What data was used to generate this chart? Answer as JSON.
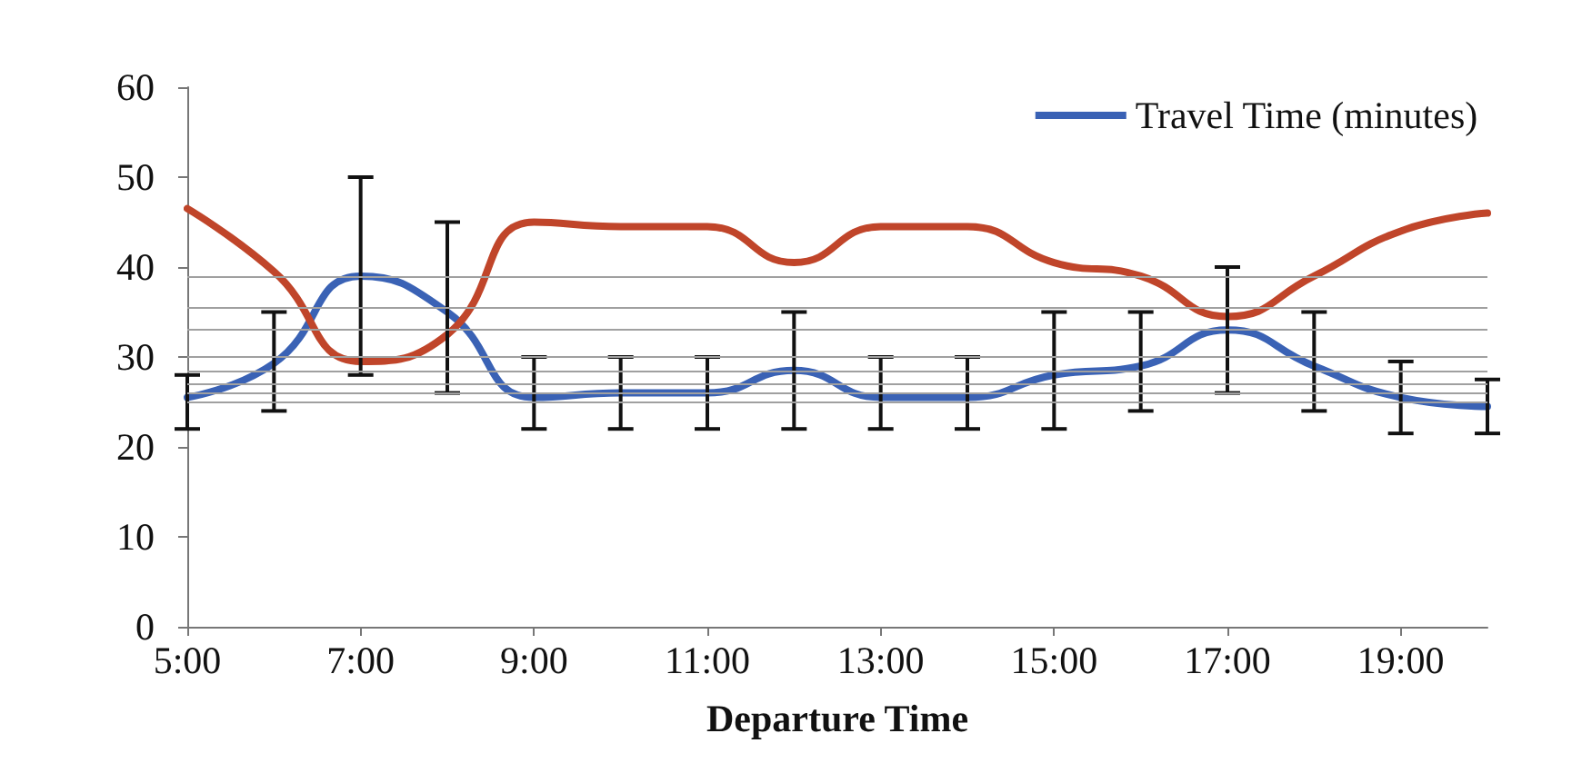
{
  "chart_data": {
    "type": "line",
    "xlabel": "Departure Time",
    "x": [
      5,
      6,
      7,
      8,
      9,
      10,
      11,
      12,
      13,
      14,
      15,
      16,
      17,
      18,
      19,
      20
    ],
    "series": [
      {
        "name": "Travel Time (minutes)",
        "color": "#3a62b5",
        "values": [
          25.5,
          29.3,
          39,
          35,
          25.5,
          26,
          26,
          28.5,
          25.5,
          25.5,
          28,
          29,
          33,
          29,
          25.5,
          24.5
        ],
        "errors": [
          [
            22,
            28
          ],
          [
            24,
            35
          ],
          [
            28,
            50
          ],
          [
            26,
            45
          ],
          [
            22,
            30
          ],
          [
            22,
            30
          ],
          [
            22,
            30
          ],
          [
            22,
            35
          ],
          [
            22,
            30
          ],
          [
            22,
            30
          ],
          [
            22,
            35
          ],
          [
            24,
            35
          ],
          [
            26,
            40
          ],
          [
            24,
            35
          ],
          [
            21.5,
            29.5
          ],
          [
            21.5,
            27.5
          ]
        ]
      },
      {
        "color": "#c0452a",
        "values": [
          46.5,
          39.5,
          29.5,
          32.5,
          45,
          44.5,
          44.5,
          40.5,
          44.5,
          44.5,
          40.5,
          39,
          34.5,
          39,
          44,
          46
        ]
      }
    ],
    "xlim": [
      5,
      20
    ],
    "xticks": [
      {
        "value": 5,
        "label": "5:00"
      },
      {
        "value": 7,
        "label": "7:00"
      },
      {
        "value": 9,
        "label": "9:00"
      },
      {
        "value": 11,
        "label": "11:00"
      },
      {
        "value": 13,
        "label": "13:00"
      },
      {
        "value": 15,
        "label": "15:00"
      },
      {
        "value": 17,
        "label": "17:00"
      },
      {
        "value": 19,
        "label": "19:00"
      }
    ],
    "ylim": [
      0,
      60
    ],
    "yticks": [
      0,
      10,
      20,
      30,
      40,
      50,
      60
    ],
    "ref_lines": [
      {
        "axis": "y",
        "value": 39,
        "color": "#a0a0a0"
      },
      {
        "axis": "y",
        "value": 35.5,
        "color": "#a0a0a0"
      },
      {
        "axis": "y",
        "value": 33,
        "color": "#a0a0a0"
      },
      {
        "axis": "y",
        "value": 30,
        "color": "#a0a0a0"
      },
      {
        "axis": "y",
        "value": 28.5,
        "color": "#a0a0a0"
      },
      {
        "axis": "y",
        "value": 27,
        "color": "#a0a0a0"
      },
      {
        "axis": "y",
        "value": 26,
        "color": "#a0a0a0"
      },
      {
        "axis": "y",
        "value": 25,
        "color": "#a0a0a0"
      }
    ],
    "legend": "top right",
    "grid": false,
    "marker": "none",
    "line_style": "solid"
  }
}
